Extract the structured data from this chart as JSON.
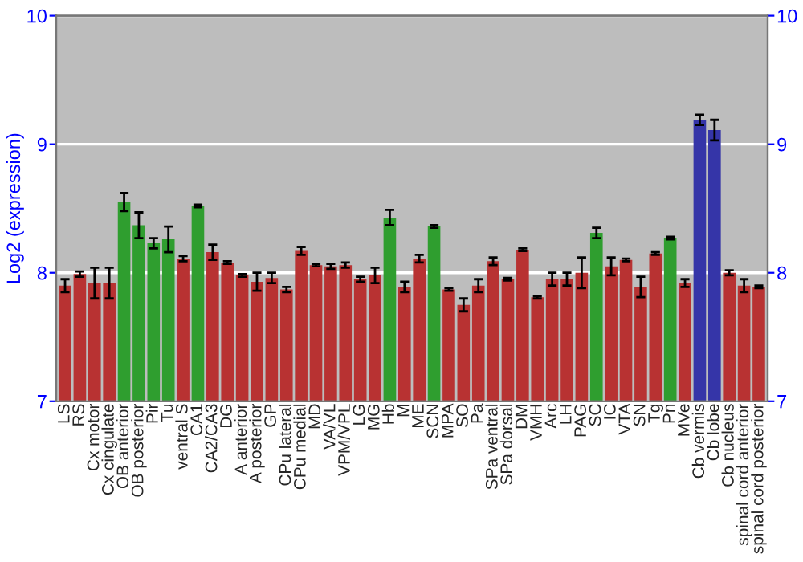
{
  "chart_data": {
    "type": "bar",
    "ylabel": "Log2 (expression)",
    "categories": [
      "LS",
      "RS",
      "Cx motor",
      "Cx cingulate",
      "OB anterior",
      "OB posterior",
      "Pir",
      "Tu",
      "ventral S",
      "CA1",
      "CA2/CA3",
      "DG",
      "A anterior",
      "A posterior",
      "GP",
      "CPu lateral",
      "CPu medial",
      "MD",
      "VA/VL",
      "VPM/VPL",
      "LG",
      "MG",
      "Hb",
      "M",
      "ME",
      "SCN",
      "MPA",
      "SO",
      "Pa",
      "SPa ventral",
      "SPa dorsal",
      "DM",
      "VMH",
      "Arc",
      "LH",
      "PAG",
      "SC",
      "IC",
      "VTA",
      "SN",
      "Tg",
      "Pn",
      "MVe",
      "Cb vermis",
      "Cb lobe",
      "Cb nucleus",
      "spinal cord anterior",
      "spinal cord posterior"
    ],
    "values": [
      7.9,
      7.99,
      7.92,
      7.92,
      8.55,
      8.37,
      8.23,
      8.26,
      8.11,
      8.52,
      8.16,
      8.08,
      7.98,
      7.93,
      7.96,
      7.87,
      8.17,
      8.06,
      8.05,
      8.06,
      7.95,
      7.98,
      8.43,
      7.89,
      8.11,
      8.36,
      7.87,
      7.75,
      7.9,
      8.09,
      7.95,
      8.18,
      7.81,
      7.95,
      7.95,
      8.0,
      8.31,
      8.05,
      8.1,
      7.89,
      8.15,
      8.27,
      7.92,
      9.19,
      9.11,
      8.0,
      7.9,
      7.89
    ],
    "errors": [
      0.05,
      0.02,
      0.12,
      0.12,
      0.07,
      0.1,
      0.04,
      0.1,
      0.02,
      0.01,
      0.06,
      0.01,
      0.01,
      0.07,
      0.04,
      0.02,
      0.03,
      0.01,
      0.02,
      0.02,
      0.02,
      0.06,
      0.06,
      0.04,
      0.03,
      0.01,
      0.01,
      0.05,
      0.05,
      0.03,
      0.01,
      0.01,
      0.01,
      0.05,
      0.05,
      0.12,
      0.04,
      0.07,
      0.01,
      0.08,
      0.01,
      0.01,
      0.03,
      0.04,
      0.08,
      0.02,
      0.05,
      0.01
    ],
    "colors": [
      "#b83232",
      "#b83232",
      "#b83232",
      "#b83232",
      "#2f9e2f",
      "#2f9e2f",
      "#2f9e2f",
      "#2f9e2f",
      "#b83232",
      "#2f9e2f",
      "#b83232",
      "#b83232",
      "#b83232",
      "#b83232",
      "#b83232",
      "#b83232",
      "#b83232",
      "#b83232",
      "#b83232",
      "#b83232",
      "#b83232",
      "#b83232",
      "#2f9e2f",
      "#b83232",
      "#b83232",
      "#2f9e2f",
      "#b83232",
      "#b83232",
      "#b83232",
      "#b83232",
      "#b83232",
      "#b83232",
      "#b83232",
      "#b83232",
      "#b83232",
      "#b83232",
      "#2f9e2f",
      "#b83232",
      "#b83232",
      "#b83232",
      "#b83232",
      "#2f9e2f",
      "#b83232",
      "#3535a8",
      "#3535a8",
      "#b83232",
      "#b83232",
      "#b83232"
    ],
    "ylim": [
      7,
      10
    ],
    "yticks": [
      7,
      8,
      9,
      10
    ],
    "y2lim": [
      7,
      10
    ],
    "y2ticks": [
      7,
      8,
      9,
      10
    ],
    "grid": "y"
  }
}
